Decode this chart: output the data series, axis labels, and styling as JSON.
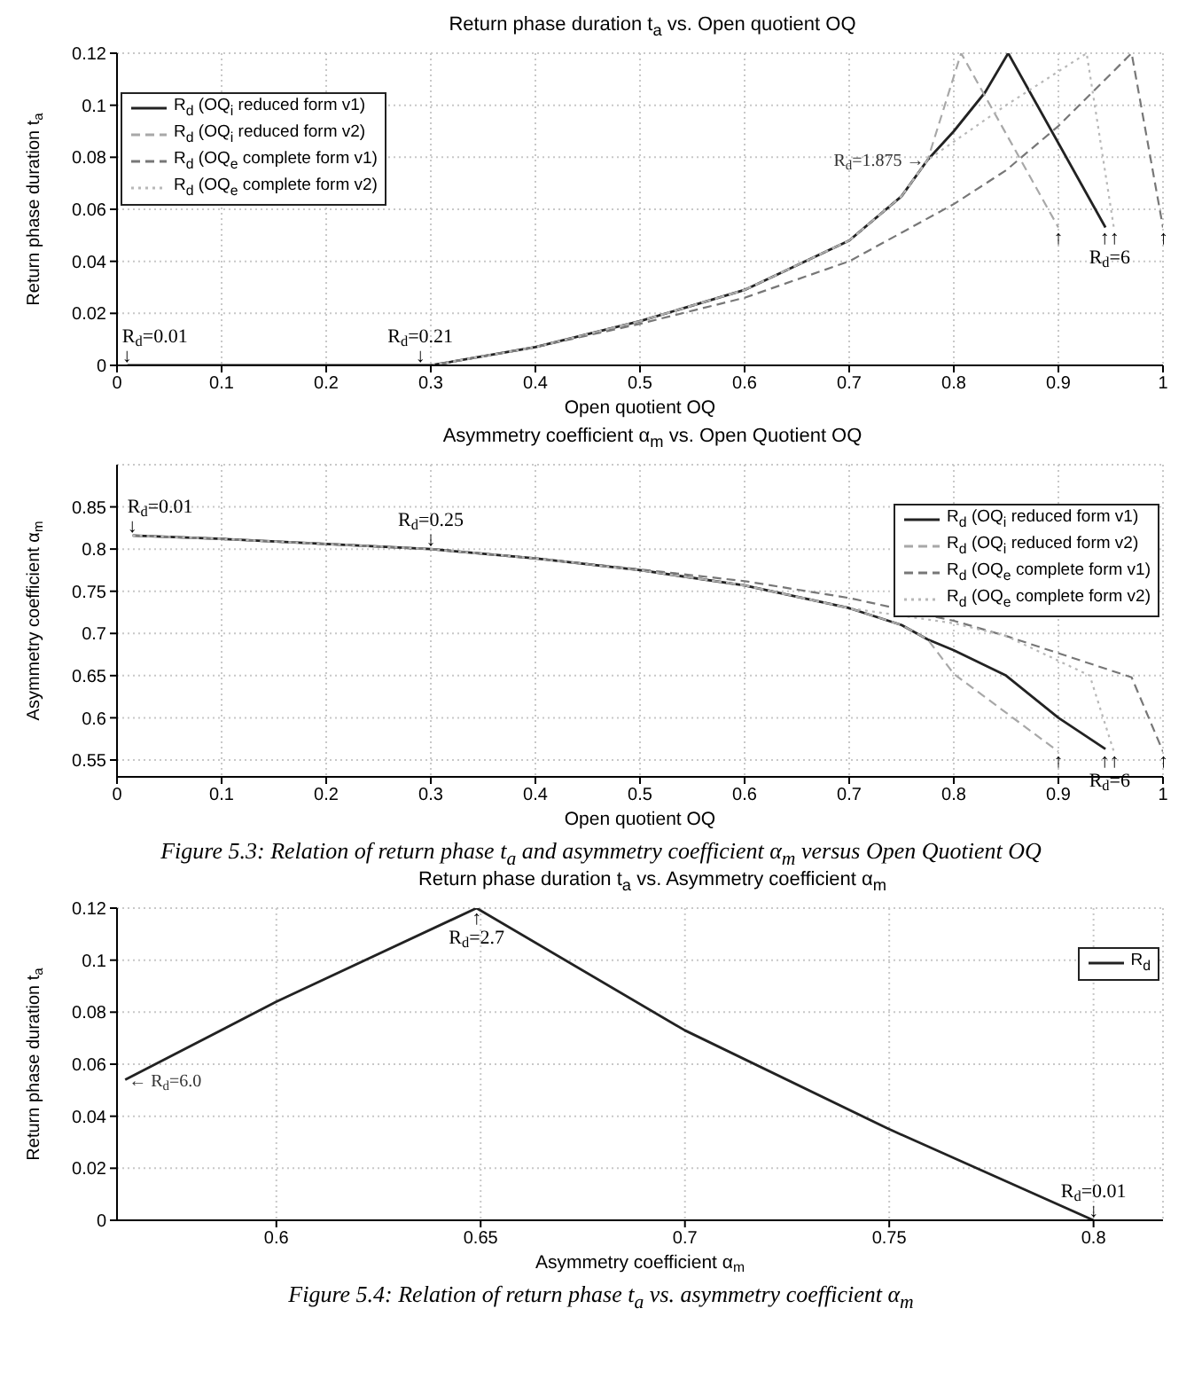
{
  "chart_data": [
    {
      "type": "line",
      "title": "Return phase duration t$_{a}$ vs. Open quotient OQ",
      "xlabel": "Open quotient OQ",
      "ylabel": "Return phase duration t$_{a}$",
      "xlim": [
        0,
        1
      ],
      "ylim": [
        0,
        0.12
      ],
      "xticks": [
        0,
        0.1,
        0.2,
        0.3,
        0.4,
        0.5,
        0.6,
        0.7,
        0.8,
        0.9,
        1
      ],
      "yticks": [
        0,
        0.02,
        0.04,
        0.06,
        0.08,
        0.1,
        0.12
      ],
      "grid": true,
      "legend": "top left",
      "marker": "none",
      "series": [
        {
          "name": "R$_{d}$ (OQ$_{i}$ reduced form v1)",
          "color": "#222222",
          "line_style": "solid",
          "x": [
            0.01,
            0.3,
            0.4,
            0.5,
            0.6,
            0.7,
            0.75,
            0.775,
            0.8,
            0.83,
            0.852,
            0.945
          ],
          "values": [
            0,
            0,
            0.007,
            0.017,
            0.029,
            0.048,
            0.065,
            0.079,
            0.09,
            0.105,
            0.12,
            0.053
          ]
        },
        {
          "name": "R$_{d}$ (OQ$_{i}$ reduced form v2)",
          "color": "#a8a8a8",
          "line_style": "dashed",
          "x": [
            0.01,
            0.3,
            0.4,
            0.5,
            0.6,
            0.7,
            0.75,
            0.775,
            0.807,
            0.9
          ],
          "values": [
            0,
            0,
            0.007,
            0.017,
            0.029,
            0.048,
            0.065,
            0.079,
            0.12,
            0.053
          ]
        },
        {
          "name": "R$_{d}$ (OQ$_{e}$ complete form v1)",
          "color": "#777777",
          "line_style": "dashed",
          "x": [
            0.01,
            0.3,
            0.4,
            0.5,
            0.6,
            0.7,
            0.8,
            0.85,
            0.9,
            0.97,
            1.0
          ],
          "values": [
            0,
            0,
            0.007,
            0.016,
            0.026,
            0.04,
            0.062,
            0.075,
            0.092,
            0.12,
            0.053
          ]
        },
        {
          "name": "R$_{d}$ (OQ$_{e}$ complete form v2)",
          "color": "#b8b8b8",
          "line_style": "dotted",
          "x": [
            0.01,
            0.3,
            0.4,
            0.5,
            0.6,
            0.7,
            0.75,
            0.775,
            0.85,
            0.927,
            0.953
          ],
          "values": [
            0,
            0,
            0.007,
            0.017,
            0.029,
            0.048,
            0.065,
            0.079,
            0.1,
            0.12,
            0.053
          ]
        }
      ],
      "annotations": [
        {
          "text": "R$_{d}$=0.01\n↓",
          "x": 0.01,
          "y": 0
        },
        {
          "text": "R$_{d}$=0.21\n↓",
          "x": 0.29,
          "y": 0
        },
        {
          "text": "R$_{d}$=1.875 →",
          "x": 0.775,
          "y": 0.079
        },
        {
          "text": "↑",
          "x": 0.9,
          "y": 0.053
        },
        {
          "text": "↑↑\nR$_{d}$=6",
          "x": 0.949,
          "y": 0.053
        },
        {
          "text": "↑",
          "x": 1.0,
          "y": 0.053
        }
      ]
    },
    {
      "type": "line",
      "title": "Asymmetry coefficient α$_{m}$ vs. Open Quotient OQ",
      "xlabel": "Open quotient OQ",
      "ylabel": "Asymmetry coefficient α$_{m}$",
      "xlim": [
        0,
        1
      ],
      "ylim": [
        0.53,
        0.9
      ],
      "xticks": [
        0,
        0.1,
        0.2,
        0.3,
        0.4,
        0.5,
        0.6,
        0.7,
        0.8,
        0.9,
        1
      ],
      "yticks": [
        0.55,
        0.6,
        0.65,
        0.7,
        0.75,
        0.8,
        0.85
      ],
      "grid": true,
      "legend": "top right",
      "marker": "none",
      "series": [
        {
          "name": "R$_{d}$ (OQ$_{i}$ reduced form v1)",
          "color": "#222222",
          "line_style": "solid",
          "x": [
            0.015,
            0.1,
            0.2,
            0.3,
            0.4,
            0.5,
            0.6,
            0.7,
            0.75,
            0.775,
            0.8,
            0.85,
            0.9,
            0.945
          ],
          "values": [
            0.816,
            0.812,
            0.806,
            0.8,
            0.789,
            0.775,
            0.757,
            0.73,
            0.71,
            0.693,
            0.68,
            0.65,
            0.6,
            0.563
          ]
        },
        {
          "name": "R$_{d}$ (OQ$_{i}$ reduced form v2)",
          "color": "#a8a8a8",
          "line_style": "dashed",
          "x": [
            0.015,
            0.1,
            0.2,
            0.3,
            0.4,
            0.5,
            0.6,
            0.7,
            0.75,
            0.775,
            0.8,
            0.9
          ],
          "values": [
            0.816,
            0.812,
            0.806,
            0.8,
            0.789,
            0.775,
            0.757,
            0.73,
            0.71,
            0.693,
            0.652,
            0.56
          ]
        },
        {
          "name": "R$_{d}$ (OQ$_{e}$ complete form v1)",
          "color": "#777777",
          "line_style": "dashed",
          "x": [
            0.015,
            0.1,
            0.2,
            0.3,
            0.4,
            0.5,
            0.6,
            0.7,
            0.8,
            0.85,
            0.97,
            1.0
          ],
          "values": [
            0.816,
            0.812,
            0.806,
            0.8,
            0.789,
            0.776,
            0.762,
            0.742,
            0.715,
            0.697,
            0.648,
            0.56
          ]
        },
        {
          "name": "R$_{d}$ (OQ$_{e}$ complete form v2)",
          "color": "#b8b8b8",
          "line_style": "dotted",
          "x": [
            0.015,
            0.1,
            0.2,
            0.3,
            0.4,
            0.5,
            0.6,
            0.7,
            0.8,
            0.85,
            0.93,
            0.953
          ],
          "values": [
            0.816,
            0.812,
            0.806,
            0.8,
            0.789,
            0.775,
            0.757,
            0.73,
            0.712,
            0.697,
            0.65,
            0.56
          ]
        }
      ],
      "annotations": [
        {
          "text": "R$_{d}$=0.01\n↓",
          "x": 0.015,
          "y": 0.816
        },
        {
          "text": "R$_{d}$=0.25\n↓",
          "x": 0.3,
          "y": 0.8
        },
        {
          "text": "↑",
          "x": 0.9,
          "y": 0.56
        },
        {
          "text": "↑↑\nR$_{d}$=6",
          "x": 0.949,
          "y": 0.56
        },
        {
          "text": "↑",
          "x": 1.0,
          "y": 0.56
        },
        "Figure 5.3: Relation of return phase t$_{a}$ and asymmetry coefficient α$_{m}$ versus Open Quotient OQ"
      ]
    },
    {
      "type": "line",
      "title": "Return phase duration t$_{a}$ vs. Asymmetry coefficient α$_{m}$",
      "xlabel": "Asymmetry coefficient α$_{m}$",
      "ylabel": "Return phase duration t$_{a}$",
      "xlim": [
        0.561,
        0.817
      ],
      "ylim": [
        0,
        0.12
      ],
      "xticks": [
        0.6,
        0.65,
        0.7,
        0.75,
        0.8
      ],
      "yticks": [
        0,
        0.02,
        0.04,
        0.06,
        0.08,
        0.1,
        0.12
      ],
      "grid": true,
      "legend": "top right",
      "marker": "none",
      "series": [
        {
          "name": "R$_{d}$",
          "color": "#222222",
          "line_style": "solid",
          "x": [
            0.563,
            0.6,
            0.649,
            0.7,
            0.75,
            0.8
          ],
          "values": [
            0.054,
            0.084,
            0.12,
            0.073,
            0.035,
            0
          ]
        }
      ],
      "annotations": [
        {
          "text": "↑\nR$_{d}$=2.7",
          "x": 0.649,
          "y": 0.12
        },
        {
          "text": "← R$_{d}$=6.0",
          "x": 0.563,
          "y": 0.054
        },
        {
          "text": "R$_{d}$=0.01\n↓",
          "x": 0.8,
          "y": 0
        },
        "Figure 5.4: Relation of return phase t$_{a}$ vs. asymmetry coefficient α$_{m}$"
      ]
    }
  ]
}
